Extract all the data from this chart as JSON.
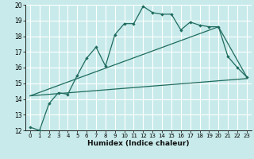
{
  "xlabel": "Humidex (Indice chaleur)",
  "bg_color": "#c8eaea",
  "grid_color": "#ffffff",
  "line_color": "#1e6b5e",
  "xlim": [
    -0.5,
    23.5
  ],
  "ylim": [
    12,
    20
  ],
  "xticks": [
    0,
    1,
    2,
    3,
    4,
    5,
    6,
    7,
    8,
    9,
    10,
    11,
    12,
    13,
    14,
    15,
    16,
    17,
    18,
    19,
    20,
    21,
    22,
    23
  ],
  "yticks": [
    12,
    13,
    14,
    15,
    16,
    17,
    18,
    19,
    20
  ],
  "main_x": [
    0,
    1,
    2,
    3,
    4,
    5,
    6,
    7,
    8,
    9,
    10,
    11,
    12,
    13,
    14,
    15,
    16,
    17,
    18,
    19,
    20,
    21,
    22,
    23
  ],
  "main_y": [
    12.2,
    12.0,
    13.7,
    14.4,
    14.3,
    15.5,
    16.6,
    17.3,
    16.1,
    18.1,
    18.8,
    18.8,
    19.9,
    19.5,
    19.4,
    19.4,
    18.4,
    18.9,
    18.7,
    18.6,
    18.6,
    16.7,
    16.0,
    15.4
  ],
  "line2_x": [
    0,
    23
  ],
  "line2_y": [
    14.2,
    15.3
  ],
  "line3_x": [
    0,
    20,
    23
  ],
  "line3_y": [
    14.2,
    18.6,
    15.4
  ]
}
